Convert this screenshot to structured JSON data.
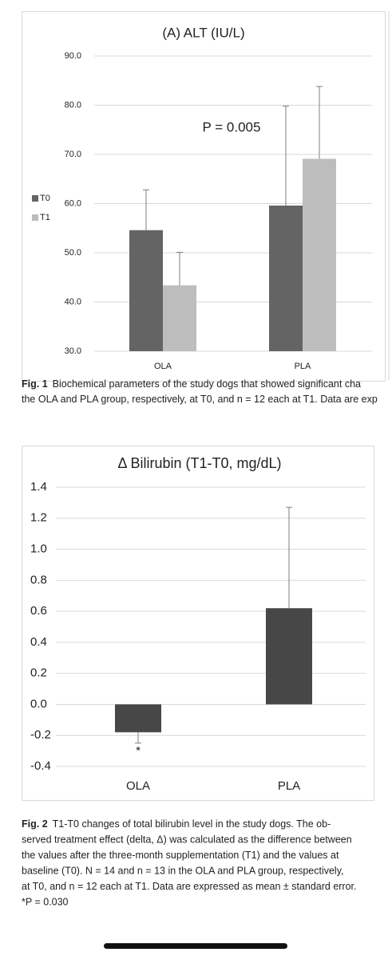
{
  "chart_data": [
    {
      "type": "bar",
      "title": "(A) ALT (IU/L)",
      "annotation": "P = 0.005",
      "categories": [
        "OLA",
        "PLA"
      ],
      "series": [
        {
          "name": "T0",
          "color": "#646464",
          "values": [
            54.6,
            59.6
          ],
          "errors": [
            8.2,
            20.2
          ]
        },
        {
          "name": "T1",
          "color": "#bdbdbd",
          "values": [
            43.4,
            69.1
          ],
          "errors": [
            6.7,
            14.7
          ]
        }
      ],
      "ylim": [
        30,
        90
      ],
      "yticks": [
        {
          "value": 30,
          "label": "30.0"
        },
        {
          "value": 40,
          "label": "40.0"
        },
        {
          "value": 50,
          "label": "50.0"
        },
        {
          "value": 60,
          "label": "60.0"
        },
        {
          "value": 70,
          "label": "70.0"
        },
        {
          "value": 80,
          "label": "80.0"
        },
        {
          "value": 90,
          "label": "90.0"
        }
      ],
      "grid": true,
      "legend": "left"
    },
    {
      "type": "bar",
      "title": "Δ Bilirubin (T1-T0, mg/dL)",
      "annotation": "*",
      "categories": [
        "OLA",
        "PLA"
      ],
      "values": [
        -0.18,
        0.62
      ],
      "errors": [
        0.07,
        0.65
      ],
      "color": "#474747",
      "ylim": [
        -0.4,
        1.4
      ],
      "yticks": [
        -0.4,
        -0.2,
        {
          "value": 0,
          "label": "0.0"
        },
        0.2,
        0.4,
        0.6,
        0.8,
        {
          "value": 1,
          "label": "1.0"
        },
        1.2,
        1.4
      ],
      "grid": true
    }
  ],
  "captions": [
    {
      "label": "Fig. 1",
      "lines": [
        "Biochemical parameters of the study dogs that showed significant cha",
        "the OLA and PLA group, respectively, at T0, and n = 12 each at T1. Data are exp"
      ]
    },
    {
      "label": "Fig. 2",
      "lines": [
        "T1-T0 changes of total bilirubin level in the study dogs. The ob-",
        "served treatment effect (delta, Δ) was calculated as the difference between",
        "the values after the three-month supplementation (T1) and the values at",
        "baseline (T0). N = 14 and n = 13 in the OLA and PLA group, respectively,",
        "at T0, and n = 12 each at T1. Data are expressed as mean ± standard error.",
        "*P = 0.030"
      ]
    }
  ]
}
